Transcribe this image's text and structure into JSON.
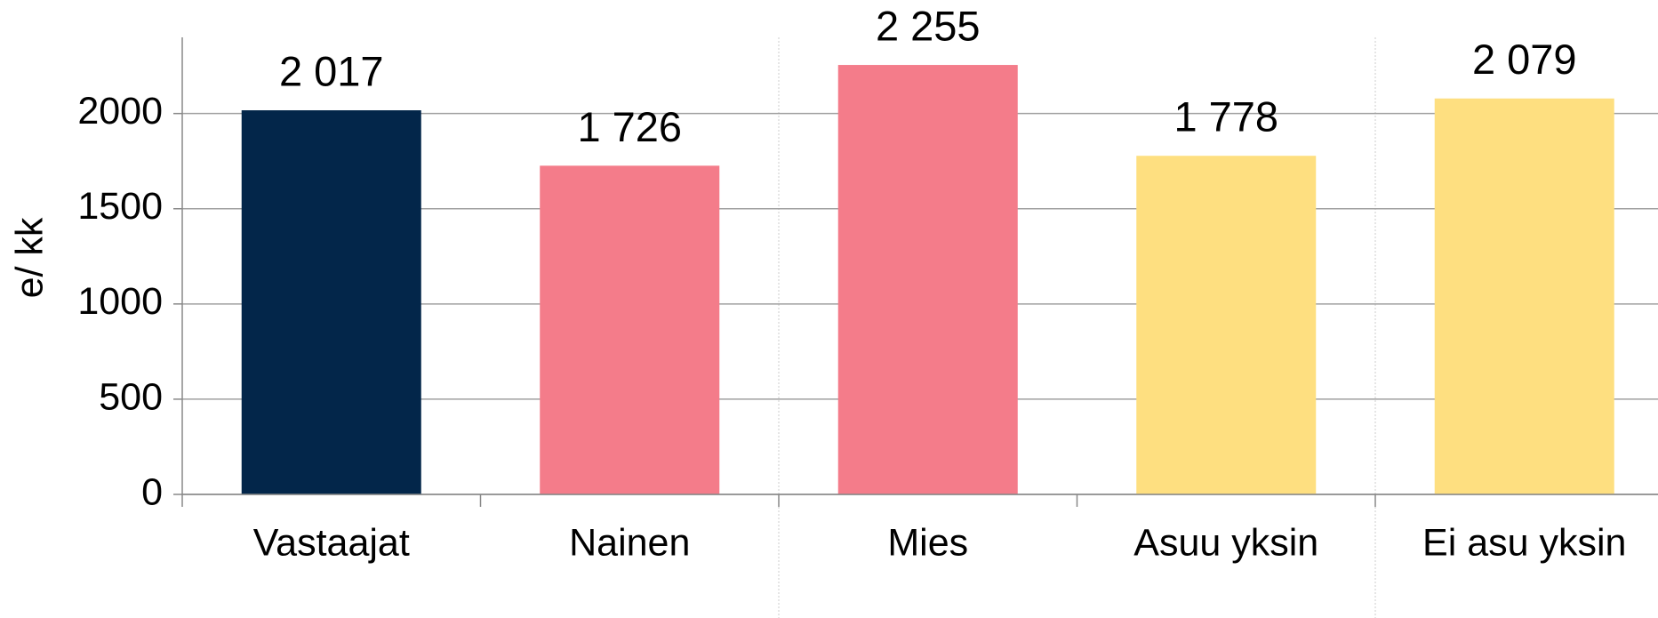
{
  "chart_data": {
    "type": "bar",
    "y_label": "e/ kk",
    "categories": [
      "Vastaajat",
      "Nainen",
      "Mies",
      "Asuu yksin",
      "Ei asu yksin"
    ],
    "values": [
      2017,
      1726,
      2255,
      1778,
      2079
    ],
    "value_labels": [
      "2 017",
      "1 726",
      "2 255",
      "1 778",
      "2 079"
    ],
    "colors": [
      "#03264a",
      "#f47c8a",
      "#f47c8a",
      "#fedf80",
      "#fedf80"
    ],
    "ylim": [
      0,
      2400
    ],
    "yticks": [
      0,
      500,
      1000,
      1500,
      2000
    ],
    "grid": true
  }
}
